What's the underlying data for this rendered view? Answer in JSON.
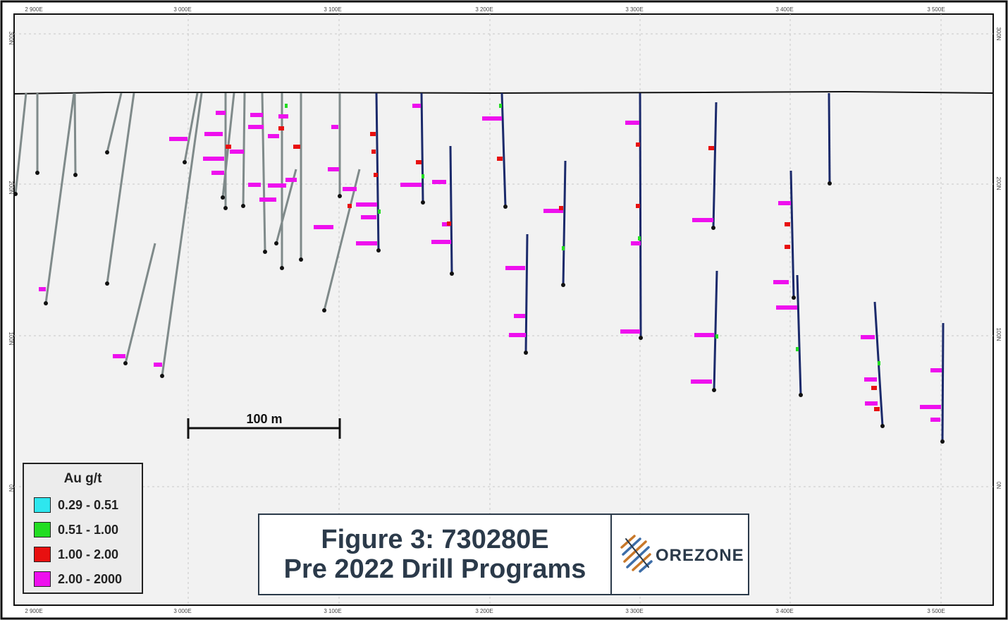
{
  "section": {
    "easting_labels": [
      "2 900E",
      "3 000E",
      "3 100E",
      "3 200E",
      "3 300E",
      "3 400E",
      "3 500E"
    ],
    "northing_labels": [
      "300N",
      "200N",
      "100N",
      "0N"
    ],
    "scale_bar_label": "100 m"
  },
  "legend": {
    "title": "Au g/t",
    "items": [
      {
        "label": "0.29 - 0.51",
        "color": "#2ee6ee"
      },
      {
        "label": "0.51 - 1.00",
        "color": "#22dd22"
      },
      {
        "label": "1.00 - 2.00",
        "color": "#e81010"
      },
      {
        "label": "2.00 - 2000",
        "color": "#ee10ee"
      }
    ]
  },
  "title": {
    "line1": "Figure 3: 730280E",
    "line2": "Pre 2022 Drill Programs"
  },
  "logo": {
    "text": "OREZONE"
  }
}
